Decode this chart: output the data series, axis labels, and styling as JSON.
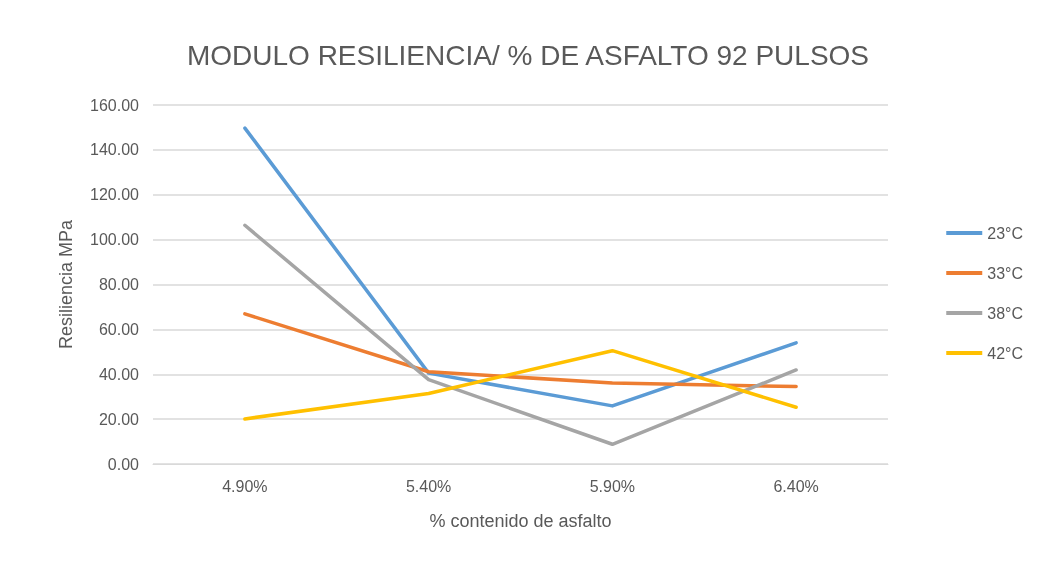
{
  "chart_data": {
    "type": "line",
    "title": "MODULO RESILIENCIA/ % DE ASFALTO 92 PULSOS",
    "xlabel": "% contenido de asfalto",
    "ylabel": "Resiliencia MPa",
    "categories": [
      "4.90%",
      "5.40%",
      "5.90%",
      "6.40%"
    ],
    "series": [
      {
        "name": "23°C",
        "color": "#5b9bd5",
        "values": [
          149.7,
          40.5,
          25.9,
          54
        ]
      },
      {
        "name": "33°C",
        "color": "#ed7d31",
        "values": [
          66.9,
          41.1,
          36.1,
          34.5
        ]
      },
      {
        "name": "38°C",
        "color": "#a5a5a5",
        "values": [
          106.4,
          37.6,
          8.8,
          41.9
        ]
      },
      {
        "name": "42°C",
        "color": "#ffc000",
        "values": [
          20.1,
          31.4,
          50.5,
          25.3
        ]
      }
    ],
    "ylim": [
      0,
      160
    ],
    "yticks": [
      {
        "value": 0,
        "label": "0.00"
      },
      {
        "value": 20,
        "label": "20.00"
      },
      {
        "value": 40,
        "label": "40.00"
      },
      {
        "value": 60,
        "label": "60.00"
      },
      {
        "value": 80,
        "label": "80.00"
      },
      {
        "value": 100,
        "label": "100.00"
      },
      {
        "value": 120,
        "label": "120.00"
      },
      {
        "value": 140,
        "label": "140.00"
      },
      {
        "value": 160,
        "label": "160.00"
      }
    ],
    "grid": "y",
    "legend": "right",
    "marker": "none",
    "line_style": "solid"
  }
}
